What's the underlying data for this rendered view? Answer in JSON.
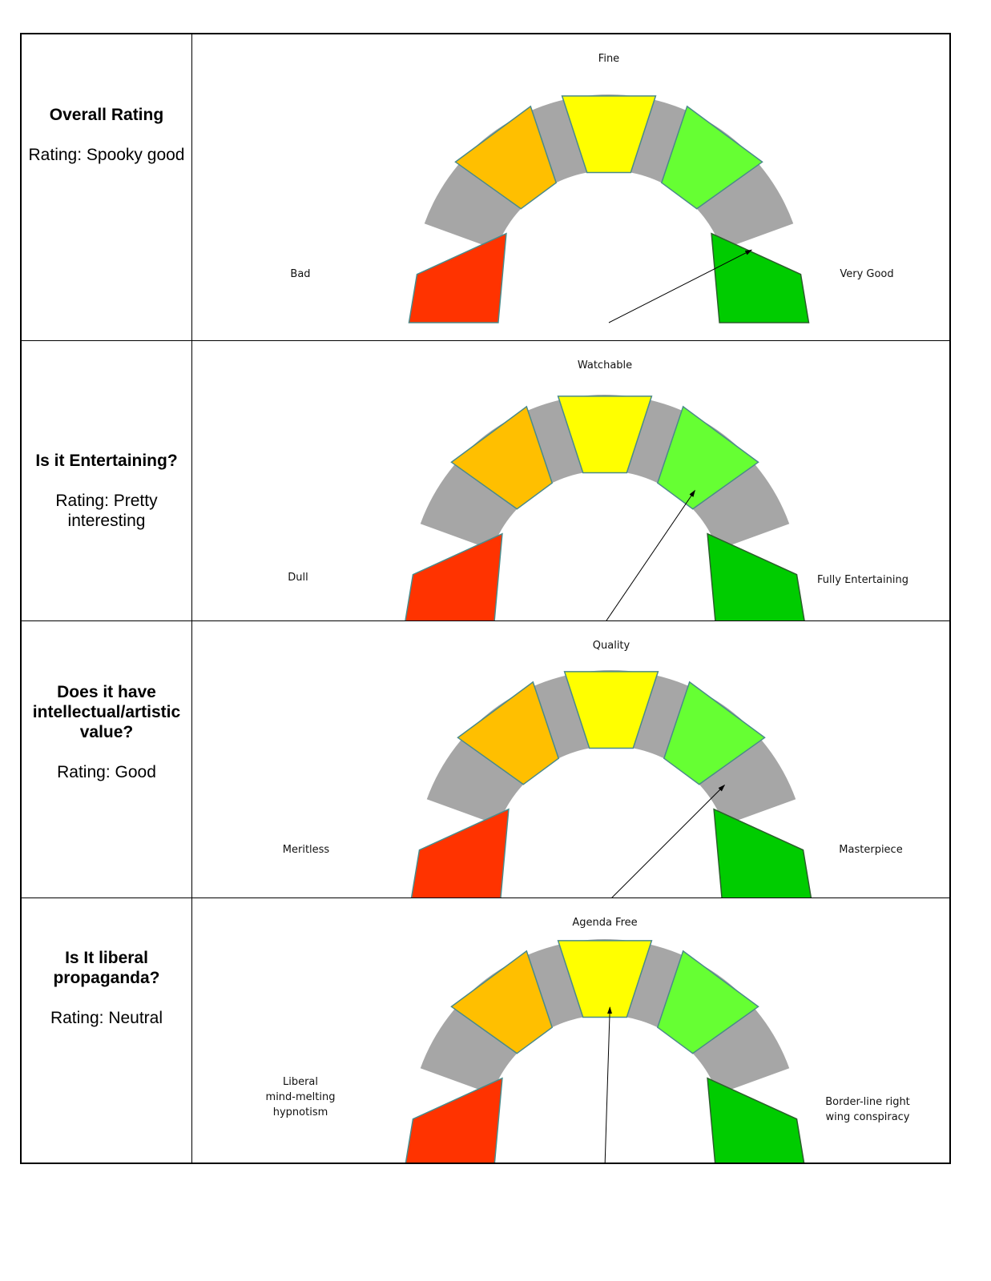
{
  "chart_data": [
    {
      "type": "gauge",
      "question": "Overall Rating",
      "rating": "Rating: Spooky good",
      "labels": {
        "left": "Bad",
        "top": "Fine",
        "right": "Very Good"
      },
      "value": 0.85,
      "segment_colors": [
        "#ff3300",
        "#ffbf00",
        "#ffff00",
        "#66ff33",
        "#00cc00"
      ]
    },
    {
      "type": "gauge",
      "question": "Is it Entertaining?",
      "rating": "Rating: Pretty interesting",
      "labels": {
        "left": "Dull",
        "top": "Watchable",
        "right": "Fully Entertaining"
      },
      "value": 0.69,
      "segment_colors": [
        "#ff3300",
        "#ffbf00",
        "#ffff00",
        "#66ff33",
        "#00cc00"
      ]
    },
    {
      "type": "gauge",
      "question": "Does it have intellectual/artistic value?",
      "rating": "Rating: Good",
      "labels": {
        "left": "Meritless",
        "top": "Quality",
        "right": "Masterpiece"
      },
      "value": 0.75,
      "segment_colors": [
        "#ff3300",
        "#ffbf00",
        "#ffff00",
        "#66ff33",
        "#00cc00"
      ]
    },
    {
      "type": "gauge",
      "question": "Is It liberal propaganda?",
      "rating": "Rating: Neutral",
      "labels": {
        "left": [
          "Liberal",
          "mind-melting",
          "hypnotism"
        ],
        "top": "Agenda Free",
        "right": [
          "Border-line right",
          "wing conspiracy"
        ]
      },
      "value": 0.51,
      "segment_colors": [
        "#ff3300",
        "#ffbf00",
        "#ffff00",
        "#66ff33",
        "#00cc00"
      ]
    }
  ],
  "colors": {
    "grey_arc": "#a6a6a6",
    "segment_stroke": "#4a8a8a",
    "needle": "#000000"
  }
}
